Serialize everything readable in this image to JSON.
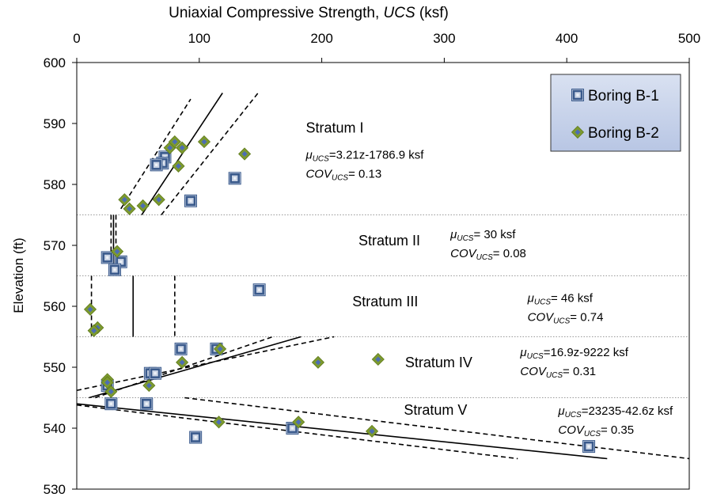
{
  "chart_data": {
    "type": "scatter",
    "title": "",
    "xlabel": "Uniaxial Compressive Strength, UCS (ksf)",
    "xlabel_parts": [
      "Uniaxial Compressive Strength, ",
      "UCS",
      " (ksf)"
    ],
    "ylabel": "Elevation (ft)",
    "xlim": [
      0,
      500
    ],
    "ylim": [
      530,
      600
    ],
    "x_axis_position": "top",
    "x_ticks": [
      0,
      100,
      200,
      300,
      400,
      500
    ],
    "y_ticks": [
      530,
      540,
      550,
      560,
      570,
      580,
      590,
      600
    ],
    "grid": false,
    "legend_position": "top-right",
    "stratum_boundaries": [
      575,
      565,
      555,
      545
    ],
    "series": [
      {
        "name": "Boring B-1",
        "marker": "square",
        "color": "#3a5a8c",
        "x": [
          72,
          70,
          65,
          129,
          93,
          25,
          36,
          31,
          149,
          85,
          114,
          60,
          64,
          25,
          28,
          57,
          176,
          97,
          418
        ],
        "y": [
          584.5,
          583.5,
          583.2,
          581,
          577.3,
          568,
          567.3,
          566,
          562.7,
          553,
          553,
          549,
          549,
          547,
          544,
          544,
          540,
          538.5,
          537
        ]
      },
      {
        "name": "Boring B-2",
        "marker": "diamond",
        "color": "#7d9a2e",
        "x": [
          76,
          80,
          83,
          86,
          104,
          137,
          39,
          43,
          54,
          67,
          33,
          11,
          17,
          14,
          117,
          86,
          25,
          25,
          28,
          59,
          197,
          246,
          181,
          241,
          116
        ],
        "y": [
          586,
          587,
          583,
          586,
          587,
          585,
          577.5,
          576,
          576.5,
          577.5,
          569,
          559.5,
          556.5,
          556,
          553,
          550.8,
          548,
          547.5,
          546,
          547,
          550.8,
          551.3,
          541,
          539.5,
          541
        ]
      }
    ],
    "trend_lines": [
      {
        "name": "Stratum I",
        "mean": [
          [
            53,
            575
          ],
          [
            119,
            595
          ]
        ],
        "upper": [
          [
            69,
            575
          ],
          [
            148,
            595
          ]
        ],
        "lower": [
          [
            36,
            576
          ],
          [
            93,
            594
          ]
        ]
      },
      {
        "name": "Stratum II",
        "mean": [
          [
            30,
            575
          ],
          [
            30,
            565
          ]
        ],
        "upper": [
          [
            32,
            575
          ],
          [
            32,
            565
          ]
        ],
        "lower": [
          [
            28,
            575
          ],
          [
            28,
            565
          ]
        ]
      },
      {
        "name": "Stratum III",
        "mean": [
          [
            46,
            565
          ],
          [
            46,
            555
          ]
        ],
        "upper": [
          [
            80,
            565
          ],
          [
            80,
            555
          ]
        ],
        "lower": [
          [
            12,
            565
          ],
          [
            12,
            555
          ]
        ]
      },
      {
        "name": "Stratum IV",
        "mean": [
          [
            10,
            545
          ],
          [
            183,
            555
          ]
        ],
        "upper": [
          [
            0,
            546.2
          ],
          [
            210,
            555
          ]
        ],
        "lower": [
          [
            15,
            545
          ],
          [
            160,
            555
          ]
        ]
      },
      {
        "name": "Stratum V",
        "mean": [
          [
            0,
            544
          ],
          [
            433,
            535
          ]
        ],
        "upper": [
          [
            88,
            545
          ],
          [
            500,
            535
          ]
        ],
        "lower": [
          [
            0,
            543.8
          ],
          [
            360,
            535
          ]
        ]
      }
    ],
    "annotations": [
      {
        "label": "Stratum I",
        "x": 187,
        "y": 588.5,
        "kind": "stratum"
      },
      {
        "label": "Stratum II",
        "x": 230,
        "y": 570.0,
        "kind": "stratum"
      },
      {
        "label": "Stratum III",
        "x": 225,
        "y": 560.0,
        "kind": "stratum"
      },
      {
        "label": "Stratum IV",
        "x": 268,
        "y": 550.0,
        "kind": "stratum"
      },
      {
        "label": "Stratum V",
        "x": 267,
        "y": 542.2,
        "kind": "stratum"
      },
      {
        "mu": "=3.21z-1786.9 ksf",
        "cov": "= 0.13",
        "x": 187,
        "y": 584.2,
        "kind": "stats"
      },
      {
        "mu": "= 30 ksf",
        "cov": "= 0.08",
        "x": 305,
        "y": 571.2,
        "kind": "stats"
      },
      {
        "mu": "= 46 ksf",
        "cov": "= 0.74",
        "x": 368,
        "y": 560.7,
        "kind": "stats"
      },
      {
        "mu": "=16.9z-9222 ksf",
        "cov": "= 0.31",
        "x": 362,
        "y": 551.8,
        "kind": "stats"
      },
      {
        "mu": "=23235-42.6z ksf",
        "cov": "= 0.35",
        "x": 393,
        "y": 542.2,
        "kind": "stats"
      }
    ],
    "symbols": {
      "mu": "μ",
      "cov": "COV",
      "sub": "UCS"
    }
  }
}
